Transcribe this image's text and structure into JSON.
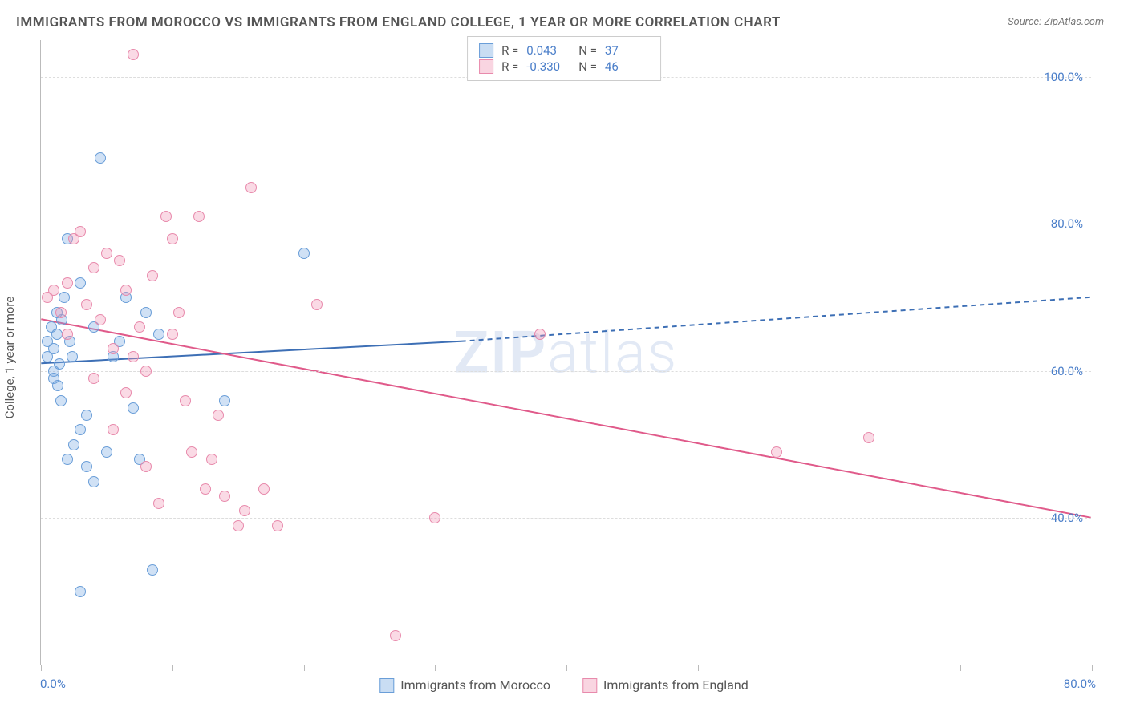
{
  "title": "IMMIGRANTS FROM MOROCCO VS IMMIGRANTS FROM ENGLAND COLLEGE, 1 YEAR OR MORE CORRELATION CHART",
  "source_prefix": "Source: ",
  "source_name": "ZipAtlas.com",
  "watermark": "ZIPatlas",
  "chart": {
    "type": "scatter",
    "y_axis_title": "College, 1 year or more",
    "xlim": [
      0,
      80
    ],
    "ylim": [
      20,
      105
    ],
    "x_ticks": [
      0,
      10,
      20,
      30,
      40,
      50,
      60,
      70,
      80
    ],
    "y_ticks": [
      40,
      60,
      80,
      100
    ],
    "x_tick_labels": {
      "first": "0.0%",
      "last": "80.0%"
    },
    "y_tick_labels": [
      "40.0%",
      "60.0%",
      "80.0%",
      "100.0%"
    ],
    "grid_color": "#dddddd",
    "background_color": "#ffffff",
    "marker_size": 14,
    "series": [
      {
        "name": "Immigrants from Morocco",
        "color_fill": "rgba(120,170,225,0.35)",
        "color_stroke": "#6a9ed8",
        "R": "0.043",
        "N": "37",
        "trend": {
          "x1": 0,
          "y1": 61,
          "x2_solid": 32,
          "y2_solid": 64,
          "x2": 80,
          "y2": 70,
          "color": "#3d6fb5",
          "width": 2
        },
        "points": [
          [
            0.5,
            64
          ],
          [
            0.5,
            62
          ],
          [
            0.8,
            66
          ],
          [
            1,
            60
          ],
          [
            1,
            63
          ],
          [
            1.2,
            68
          ],
          [
            1.2,
            65
          ],
          [
            1.4,
            61
          ],
          [
            1.5,
            56
          ],
          [
            1.6,
            67
          ],
          [
            1.8,
            70
          ],
          [
            2,
            78
          ],
          [
            2,
            48
          ],
          [
            2.2,
            64
          ],
          [
            2.4,
            62
          ],
          [
            2.5,
            50
          ],
          [
            3,
            52
          ],
          [
            3,
            72
          ],
          [
            3.5,
            54
          ],
          [
            3.5,
            47
          ],
          [
            4,
            45
          ],
          [
            4,
            66
          ],
          [
            4.5,
            89
          ],
          [
            5,
            49
          ],
          [
            5.5,
            62
          ],
          [
            6,
            64
          ],
          [
            6.5,
            70
          ],
          [
            7,
            55
          ],
          [
            7.5,
            48
          ],
          [
            8,
            68
          ],
          [
            8.5,
            33
          ],
          [
            9,
            65
          ],
          [
            3,
            30
          ],
          [
            14,
            56
          ],
          [
            20,
            76
          ],
          [
            1,
            59
          ],
          [
            1.3,
            58
          ]
        ]
      },
      {
        "name": "Immigrants from England",
        "color_fill": "rgba(240,150,180,0.35)",
        "color_stroke": "#e88aac",
        "R": "-0.330",
        "N": "46",
        "trend": {
          "x1": 0,
          "y1": 67,
          "x2_solid": 80,
          "y2_solid": 40,
          "x2": 80,
          "y2": 40,
          "color": "#e05a8a",
          "width": 2
        },
        "points": [
          [
            0.5,
            70
          ],
          [
            1,
            71
          ],
          [
            1.5,
            68
          ],
          [
            2,
            72
          ],
          [
            2,
            65
          ],
          [
            2.5,
            78
          ],
          [
            3,
            79
          ],
          [
            3.5,
            69
          ],
          [
            4,
            74
          ],
          [
            4.5,
            67
          ],
          [
            5,
            76
          ],
          [
            5.5,
            63
          ],
          [
            6,
            75
          ],
          [
            6.5,
            71
          ],
          [
            7,
            62
          ],
          [
            7.5,
            66
          ],
          [
            8,
            60
          ],
          [
            8.5,
            73
          ],
          [
            9,
            42
          ],
          [
            9.5,
            81
          ],
          [
            10,
            65
          ],
          [
            10.5,
            68
          ],
          [
            11,
            56
          ],
          [
            11.5,
            49
          ],
          [
            12,
            81
          ],
          [
            12.5,
            44
          ],
          [
            13,
            48
          ],
          [
            13.5,
            54
          ],
          [
            14,
            43
          ],
          [
            15,
            39
          ],
          [
            15.5,
            41
          ],
          [
            16,
            85
          ],
          [
            7,
            103
          ],
          [
            17,
            44
          ],
          [
            18,
            39
          ],
          [
            21,
            69
          ],
          [
            27,
            24
          ],
          [
            30,
            40
          ],
          [
            38,
            65
          ],
          [
            56,
            49
          ],
          [
            63,
            51
          ],
          [
            4,
            59
          ],
          [
            5.5,
            52
          ],
          [
            6.5,
            57
          ],
          [
            8,
            47
          ],
          [
            10,
            78
          ]
        ]
      }
    ]
  }
}
